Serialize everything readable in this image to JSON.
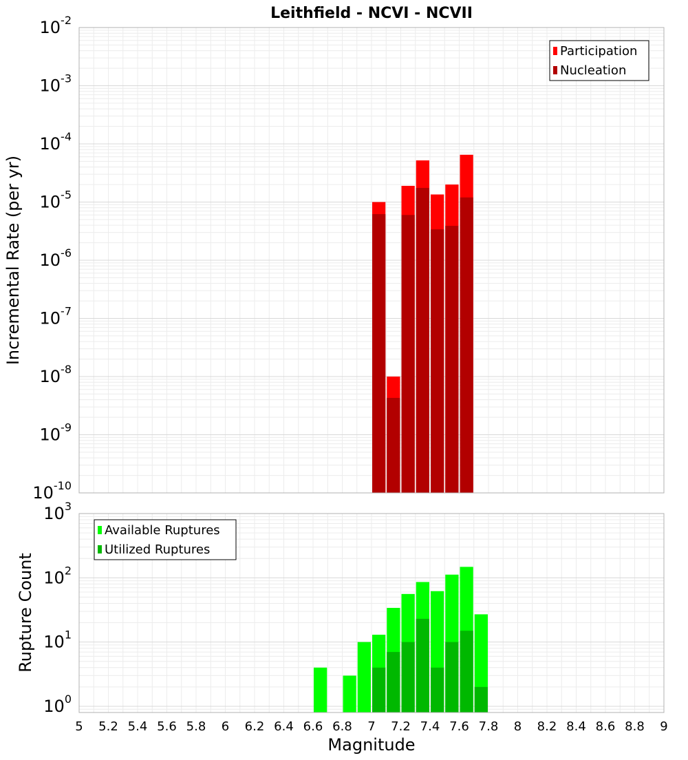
{
  "title": "Leithfield - NCVI - NCVII",
  "chart_data": [
    {
      "type": "bar",
      "yscale": "log",
      "ylabel": "Incremental Rate (per yr)",
      "xlim": [
        5,
        9
      ],
      "ylim": [
        1e-10,
        0.01
      ],
      "grid": true,
      "legend_position": "top-right",
      "y_ticks": [
        {
          "base": "10",
          "exp": "-10",
          "value": 1e-10
        },
        {
          "base": "10",
          "exp": "-9",
          "value": 1e-09
        },
        {
          "base": "10",
          "exp": "-8",
          "value": 1e-08
        },
        {
          "base": "10",
          "exp": "-7",
          "value": 1e-07
        },
        {
          "base": "10",
          "exp": "-6",
          "value": 1e-06
        },
        {
          "base": "10",
          "exp": "-5",
          "value": 1e-05
        },
        {
          "base": "10",
          "exp": "-4",
          "value": 0.0001
        },
        {
          "base": "10",
          "exp": "-3",
          "value": 0.001
        },
        {
          "base": "10",
          "exp": "-2",
          "value": 0.01
        }
      ],
      "x": [
        7.05,
        7.15,
        7.25,
        7.35,
        7.45,
        7.55,
        7.65
      ],
      "series": [
        {
          "name": "Participation",
          "color": "#ff0000",
          "values": [
            1e-05,
            1e-08,
            1.9e-05,
            5.2e-05,
            1.35e-05,
            2e-05,
            6.5e-05
          ]
        },
        {
          "name": "Nucleation",
          "color": "#b20000",
          "values": [
            6.2e-06,
            4.3e-09,
            6e-06,
            1.75e-05,
            3.4e-06,
            3.9e-06,
            1.2e-05
          ]
        }
      ]
    },
    {
      "type": "bar",
      "yscale": "log",
      "ylabel": "Rupture Count",
      "xlabel": "Magnitude",
      "xlim": [
        5,
        9
      ],
      "ylim": [
        0.8,
        1000
      ],
      "grid": true,
      "legend_position": "top-left",
      "y_ticks": [
        {
          "base": "10",
          "exp": "0",
          "value": 1
        },
        {
          "base": "10",
          "exp": "1",
          "value": 10
        },
        {
          "base": "10",
          "exp": "2",
          "value": 100
        },
        {
          "base": "10",
          "exp": "3",
          "value": 1000
        }
      ],
      "x_ticks": [
        "5",
        "5.2",
        "5.4",
        "5.6",
        "5.8",
        "6",
        "6.2",
        "6.4",
        "6.6",
        "6.8",
        "7",
        "7.2",
        "7.4",
        "7.6",
        "7.8",
        "8",
        "8.2",
        "8.4",
        "8.6",
        "8.8",
        "9"
      ],
      "x": [
        6.65,
        6.85,
        6.95,
        7.05,
        7.15,
        7.25,
        7.35,
        7.45,
        7.55,
        7.65,
        7.75
      ],
      "series": [
        {
          "name": "Available Ruptures",
          "color": "#00ff00",
          "values": [
            4,
            3,
            10,
            13,
            34,
            56,
            86,
            62,
            112,
            148,
            27
          ]
        },
        {
          "name": "Utilized Ruptures",
          "color": "#00b800",
          "values": [
            null,
            null,
            null,
            4,
            7,
            10,
            23,
            4,
            10,
            15,
            2
          ]
        }
      ]
    }
  ]
}
